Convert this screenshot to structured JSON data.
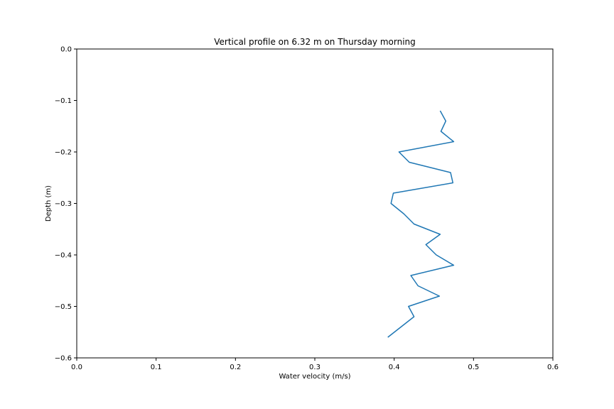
{
  "chart_data": {
    "type": "line",
    "title": "Vertical profile on 6.32 m on Thursday morning",
    "xlabel": "Water velocity (m/s)",
    "ylabel": "Depth (m)",
    "xlim": [
      0.0,
      0.6
    ],
    "ylim": [
      -0.6,
      0.0
    ],
    "x_ticks": [
      0.0,
      0.1,
      0.2,
      0.3,
      0.4,
      0.5,
      0.6
    ],
    "x_tick_labels": [
      "0.0",
      "0.1",
      "0.2",
      "0.3",
      "0.4",
      "0.5",
      "0.6"
    ],
    "y_ticks": [
      0.0,
      -0.1,
      -0.2,
      -0.3,
      -0.4,
      -0.5,
      -0.6
    ],
    "y_tick_labels": [
      "0.0",
      "−0.1",
      "−0.2",
      "−0.3",
      "−0.4",
      "−0.5",
      "−0.6"
    ],
    "grid": false,
    "series": [
      {
        "color": "#1f77b4",
        "x": [
          0.458,
          0.465,
          0.459,
          0.475,
          0.406,
          0.419,
          0.471,
          0.474,
          0.399,
          0.396,
          0.412,
          0.425,
          0.458,
          0.44,
          0.453,
          0.475,
          0.421,
          0.43,
          0.457,
          0.418,
          0.425,
          0.392
        ],
        "y": [
          -0.12,
          -0.14,
          -0.16,
          -0.18,
          -0.2,
          -0.22,
          -0.24,
          -0.26,
          -0.28,
          -0.3,
          -0.32,
          -0.34,
          -0.36,
          -0.38,
          -0.4,
          -0.42,
          -0.44,
          -0.46,
          -0.48,
          -0.5,
          -0.52,
          -0.56
        ]
      }
    ]
  }
}
